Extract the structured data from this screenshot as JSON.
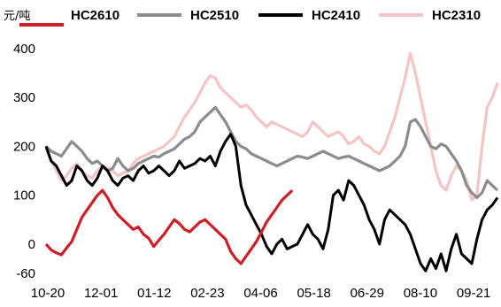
{
  "chart_data": {
    "type": "line",
    "unit": "元/吨",
    "ylim": [
      -60,
      400
    ],
    "y_ticks": [
      400,
      300,
      200,
      100,
      0,
      -60
    ],
    "x_ticks": [
      "10-20",
      "12-01",
      "01-12",
      "02-23",
      "04-06",
      "05-18",
      "06-29",
      "08-10",
      "09-21"
    ],
    "legend_position": "top",
    "grid": false,
    "series": [
      {
        "name": "HC2610",
        "color": "#cc1f27",
        "values": [
          [
            0,
            0
          ],
          [
            1,
            -12
          ],
          [
            2,
            -18
          ],
          [
            3,
            -22
          ],
          [
            4,
            -8
          ],
          [
            5,
            5
          ],
          [
            6,
            30
          ],
          [
            7,
            55
          ],
          [
            8,
            70
          ],
          [
            9,
            85
          ],
          [
            10,
            100
          ],
          [
            11,
            110
          ],
          [
            12,
            95
          ],
          [
            13,
            75
          ],
          [
            14,
            60
          ],
          [
            15,
            50
          ],
          [
            16,
            40
          ],
          [
            17,
            30
          ],
          [
            18,
            35
          ],
          [
            19,
            20
          ],
          [
            20,
            12
          ],
          [
            21,
            -5
          ],
          [
            22,
            8
          ],
          [
            23,
            20
          ],
          [
            24,
            35
          ],
          [
            25,
            50
          ],
          [
            26,
            42
          ],
          [
            27,
            30
          ],
          [
            28,
            25
          ],
          [
            29,
            35
          ],
          [
            30,
            45
          ],
          [
            31,
            50
          ],
          [
            32,
            40
          ],
          [
            33,
            30
          ],
          [
            34,
            20
          ],
          [
            35,
            10
          ],
          [
            36,
            -15
          ],
          [
            37,
            -30
          ],
          [
            38,
            -40
          ],
          [
            39,
            -25
          ],
          [
            40,
            -10
          ],
          [
            41,
            5
          ],
          [
            42,
            25
          ],
          [
            43,
            45
          ],
          [
            44,
            60
          ],
          [
            45,
            75
          ],
          [
            46,
            90
          ],
          [
            47,
            100
          ],
          [
            48,
            110
          ]
        ]
      },
      {
        "name": "HC2510",
        "color": "#8c8c8c",
        "values": [
          [
            0,
            200
          ],
          [
            1,
            190
          ],
          [
            2,
            185
          ],
          [
            3,
            180
          ],
          [
            4,
            195
          ],
          [
            5,
            210
          ],
          [
            6,
            200
          ],
          [
            7,
            190
          ],
          [
            8,
            175
          ],
          [
            9,
            165
          ],
          [
            10,
            170
          ],
          [
            11,
            160
          ],
          [
            12,
            150
          ],
          [
            13,
            155
          ],
          [
            14,
            175
          ],
          [
            15,
            160
          ],
          [
            16,
            150
          ],
          [
            17,
            155
          ],
          [
            18,
            165
          ],
          [
            19,
            170
          ],
          [
            20,
            175
          ],
          [
            21,
            180
          ],
          [
            22,
            178
          ],
          [
            23,
            185
          ],
          [
            24,
            190
          ],
          [
            25,
            195
          ],
          [
            26,
            205
          ],
          [
            27,
            215
          ],
          [
            28,
            220
          ],
          [
            29,
            230
          ],
          [
            30,
            250
          ],
          [
            31,
            260
          ],
          [
            32,
            270
          ],
          [
            33,
            280
          ],
          [
            34,
            265
          ],
          [
            35,
            250
          ],
          [
            36,
            230
          ],
          [
            37,
            210
          ],
          [
            38,
            200
          ],
          [
            39,
            195
          ],
          [
            40,
            185
          ],
          [
            41,
            180
          ],
          [
            42,
            175
          ],
          [
            43,
            170
          ],
          [
            44,
            165
          ],
          [
            45,
            160
          ],
          [
            46,
            165
          ],
          [
            47,
            170
          ],
          [
            48,
            175
          ],
          [
            49,
            180
          ],
          [
            50,
            178
          ],
          [
            51,
            175
          ],
          [
            52,
            180
          ],
          [
            53,
            185
          ],
          [
            54,
            190
          ],
          [
            55,
            185
          ],
          [
            56,
            180
          ],
          [
            57,
            175
          ],
          [
            58,
            178
          ],
          [
            59,
            180
          ],
          [
            60,
            175
          ],
          [
            61,
            170
          ],
          [
            62,
            165
          ],
          [
            63,
            160
          ],
          [
            64,
            155
          ],
          [
            65,
            150
          ],
          [
            66,
            155
          ],
          [
            67,
            160
          ],
          [
            68,
            170
          ],
          [
            69,
            180
          ],
          [
            70,
            200
          ],
          [
            71,
            250
          ],
          [
            72,
            255
          ],
          [
            73,
            240
          ],
          [
            74,
            220
          ],
          [
            75,
            200
          ],
          [
            76,
            195
          ],
          [
            77,
            205
          ],
          [
            78,
            200
          ],
          [
            79,
            185
          ],
          [
            80,
            170
          ],
          [
            81,
            150
          ],
          [
            82,
            120
          ],
          [
            83,
            105
          ],
          [
            84,
            95
          ],
          [
            85,
            105
          ],
          [
            86,
            130
          ],
          [
            87,
            120
          ],
          [
            88,
            110
          ]
        ]
      },
      {
        "name": "HC2410",
        "color": "#000000",
        "values": [
          [
            0,
            200
          ],
          [
            1,
            170
          ],
          [
            2,
            160
          ],
          [
            3,
            140
          ],
          [
            4,
            120
          ],
          [
            5,
            130
          ],
          [
            6,
            160
          ],
          [
            7,
            150
          ],
          [
            8,
            130
          ],
          [
            9,
            120
          ],
          [
            10,
            135
          ],
          [
            11,
            160
          ],
          [
            12,
            150
          ],
          [
            13,
            130
          ],
          [
            14,
            120
          ],
          [
            15,
            135
          ],
          [
            16,
            140
          ],
          [
            17,
            130
          ],
          [
            18,
            150
          ],
          [
            19,
            160
          ],
          [
            20,
            145
          ],
          [
            21,
            150
          ],
          [
            22,
            160
          ],
          [
            23,
            150
          ],
          [
            24,
            140
          ],
          [
            25,
            150
          ],
          [
            26,
            170
          ],
          [
            27,
            155
          ],
          [
            28,
            160
          ],
          [
            29,
            165
          ],
          [
            30,
            175
          ],
          [
            31,
            170
          ],
          [
            32,
            180
          ],
          [
            33,
            160
          ],
          [
            34,
            190
          ],
          [
            35,
            210
          ],
          [
            36,
            225
          ],
          [
            37,
            200
          ],
          [
            38,
            120
          ],
          [
            39,
            80
          ],
          [
            40,
            60
          ],
          [
            41,
            40
          ],
          [
            42,
            20
          ],
          [
            43,
            -5
          ],
          [
            44,
            -20
          ],
          [
            45,
            0
          ],
          [
            46,
            10
          ],
          [
            47,
            -10
          ],
          [
            48,
            -5
          ],
          [
            49,
            0
          ],
          [
            50,
            20
          ],
          [
            51,
            40
          ],
          [
            52,
            20
          ],
          [
            53,
            10
          ],
          [
            54,
            -10
          ],
          [
            55,
            30
          ],
          [
            56,
            100
          ],
          [
            57,
            110
          ],
          [
            58,
            90
          ],
          [
            59,
            130
          ],
          [
            60,
            120
          ],
          [
            61,
            100
          ],
          [
            62,
            80
          ],
          [
            63,
            50
          ],
          [
            64,
            30
          ],
          [
            65,
            0
          ],
          [
            66,
            50
          ],
          [
            67,
            70
          ],
          [
            68,
            60
          ],
          [
            69,
            50
          ],
          [
            70,
            40
          ],
          [
            71,
            20
          ],
          [
            72,
            -10
          ],
          [
            73,
            -40
          ],
          [
            74,
            -55
          ],
          [
            75,
            -30
          ],
          [
            76,
            -50
          ],
          [
            77,
            -20
          ],
          [
            78,
            -55
          ],
          [
            79,
            -10
          ],
          [
            80,
            20
          ],
          [
            81,
            -20
          ],
          [
            82,
            -30
          ],
          [
            83,
            -40
          ],
          [
            84,
            10
          ],
          [
            85,
            50
          ],
          [
            86,
            70
          ],
          [
            87,
            80
          ],
          [
            88,
            95
          ]
        ]
      },
      {
        "name": "HC2310",
        "color": "#f5c5c5",
        "values": [
          [
            0,
            195
          ],
          [
            1,
            170
          ],
          [
            2,
            150
          ],
          [
            3,
            130
          ],
          [
            4,
            140
          ],
          [
            5,
            155
          ],
          [
            6,
            165
          ],
          [
            7,
            150
          ],
          [
            8,
            140
          ],
          [
            9,
            135
          ],
          [
            10,
            150
          ],
          [
            11,
            160
          ],
          [
            12,
            155
          ],
          [
            13,
            150
          ],
          [
            14,
            140
          ],
          [
            15,
            145
          ],
          [
            16,
            150
          ],
          [
            17,
            165
          ],
          [
            18,
            175
          ],
          [
            19,
            180
          ],
          [
            20,
            185
          ],
          [
            21,
            190
          ],
          [
            22,
            195
          ],
          [
            23,
            200
          ],
          [
            24,
            210
          ],
          [
            25,
            220
          ],
          [
            26,
            240
          ],
          [
            27,
            260
          ],
          [
            28,
            275
          ],
          [
            29,
            290
          ],
          [
            30,
            310
          ],
          [
            31,
            330
          ],
          [
            32,
            345
          ],
          [
            33,
            340
          ],
          [
            34,
            320
          ],
          [
            35,
            310
          ],
          [
            36,
            300
          ],
          [
            37,
            290
          ],
          [
            38,
            280
          ],
          [
            39,
            285
          ],
          [
            40,
            275
          ],
          [
            41,
            260
          ],
          [
            42,
            250
          ],
          [
            43,
            240
          ],
          [
            44,
            250
          ],
          [
            45,
            245
          ],
          [
            46,
            240
          ],
          [
            47,
            235
          ],
          [
            48,
            230
          ],
          [
            49,
            225
          ],
          [
            50,
            220
          ],
          [
            51,
            230
          ],
          [
            52,
            250
          ],
          [
            53,
            240
          ],
          [
            54,
            230
          ],
          [
            55,
            220
          ],
          [
            56,
            225
          ],
          [
            57,
            230
          ],
          [
            58,
            220
          ],
          [
            59,
            205
          ],
          [
            60,
            210
          ],
          [
            61,
            220
          ],
          [
            62,
            205
          ],
          [
            63,
            200
          ],
          [
            64,
            190
          ],
          [
            65,
            185
          ],
          [
            66,
            200
          ],
          [
            67,
            230
          ],
          [
            68,
            260
          ],
          [
            69,
            300
          ],
          [
            70,
            340
          ],
          [
            71,
            390
          ],
          [
            72,
            350
          ],
          [
            73,
            300
          ],
          [
            74,
            250
          ],
          [
            75,
            200
          ],
          [
            76,
            150
          ],
          [
            77,
            120
          ],
          [
            78,
            110
          ],
          [
            79,
            140
          ],
          [
            80,
            160
          ],
          [
            81,
            150
          ],
          [
            82,
            130
          ],
          [
            83,
            90
          ],
          [
            84,
            100
          ],
          [
            85,
            200
          ],
          [
            86,
            280
          ],
          [
            87,
            300
          ],
          [
            88,
            330
          ]
        ]
      }
    ]
  }
}
